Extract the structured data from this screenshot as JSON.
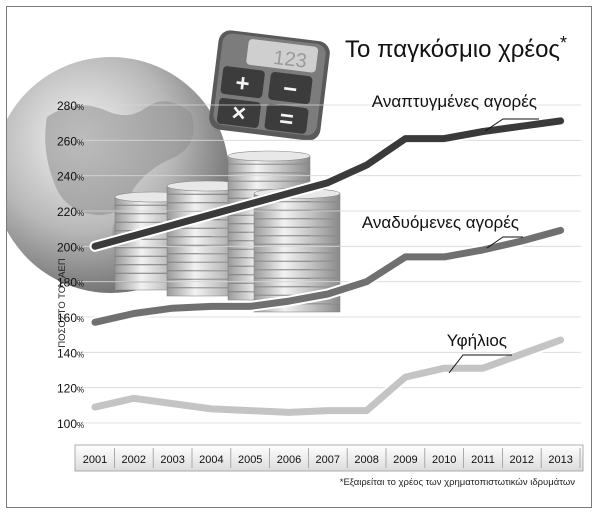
{
  "chart_data": {
    "type": "line",
    "title": "Το παγκόσμιο χρέος",
    "title_marker": "*",
    "ylabel": "ΠΟΣΟΣΤΟ ΤΟΥ ΑΕΠ",
    "xlabel": "",
    "ylim": [
      100,
      280
    ],
    "yticks": [
      100,
      120,
      140,
      160,
      180,
      200,
      220,
      240,
      260,
      280
    ],
    "ytick_suffix": "%",
    "categories": [
      "2001",
      "2002",
      "2003",
      "2004",
      "2005",
      "2006",
      "2007",
      "2008",
      "2009",
      "2010",
      "2011",
      "2012",
      "2013"
    ],
    "series": [
      {
        "name": "Αναπτυγμένες αγορές",
        "color": "#3a3a3a",
        "values": [
          200,
          206,
          212,
          218,
          224,
          230,
          236,
          246,
          261,
          261,
          265,
          268,
          271
        ]
      },
      {
        "name": "Αναδυόμενες αγορές",
        "color": "#707070",
        "values": [
          157,
          162,
          165,
          166,
          166,
          169,
          173,
          180,
          194,
          194,
          198,
          203,
          209
        ]
      },
      {
        "name": "Υφήλιος",
        "color": "#c4c4c4",
        "values": [
          109,
          114,
          111,
          108,
          107,
          106,
          107,
          107,
          126,
          131,
          131,
          139,
          147
        ]
      }
    ],
    "grid": true,
    "legend": "inline labels",
    "footnote": "*Εξαιρείται το χρέος των χρηματοπιστωτικών ιδρυμάτων"
  },
  "calculator": {
    "display": "123",
    "keys": [
      "+",
      "−",
      "×",
      "="
    ]
  }
}
